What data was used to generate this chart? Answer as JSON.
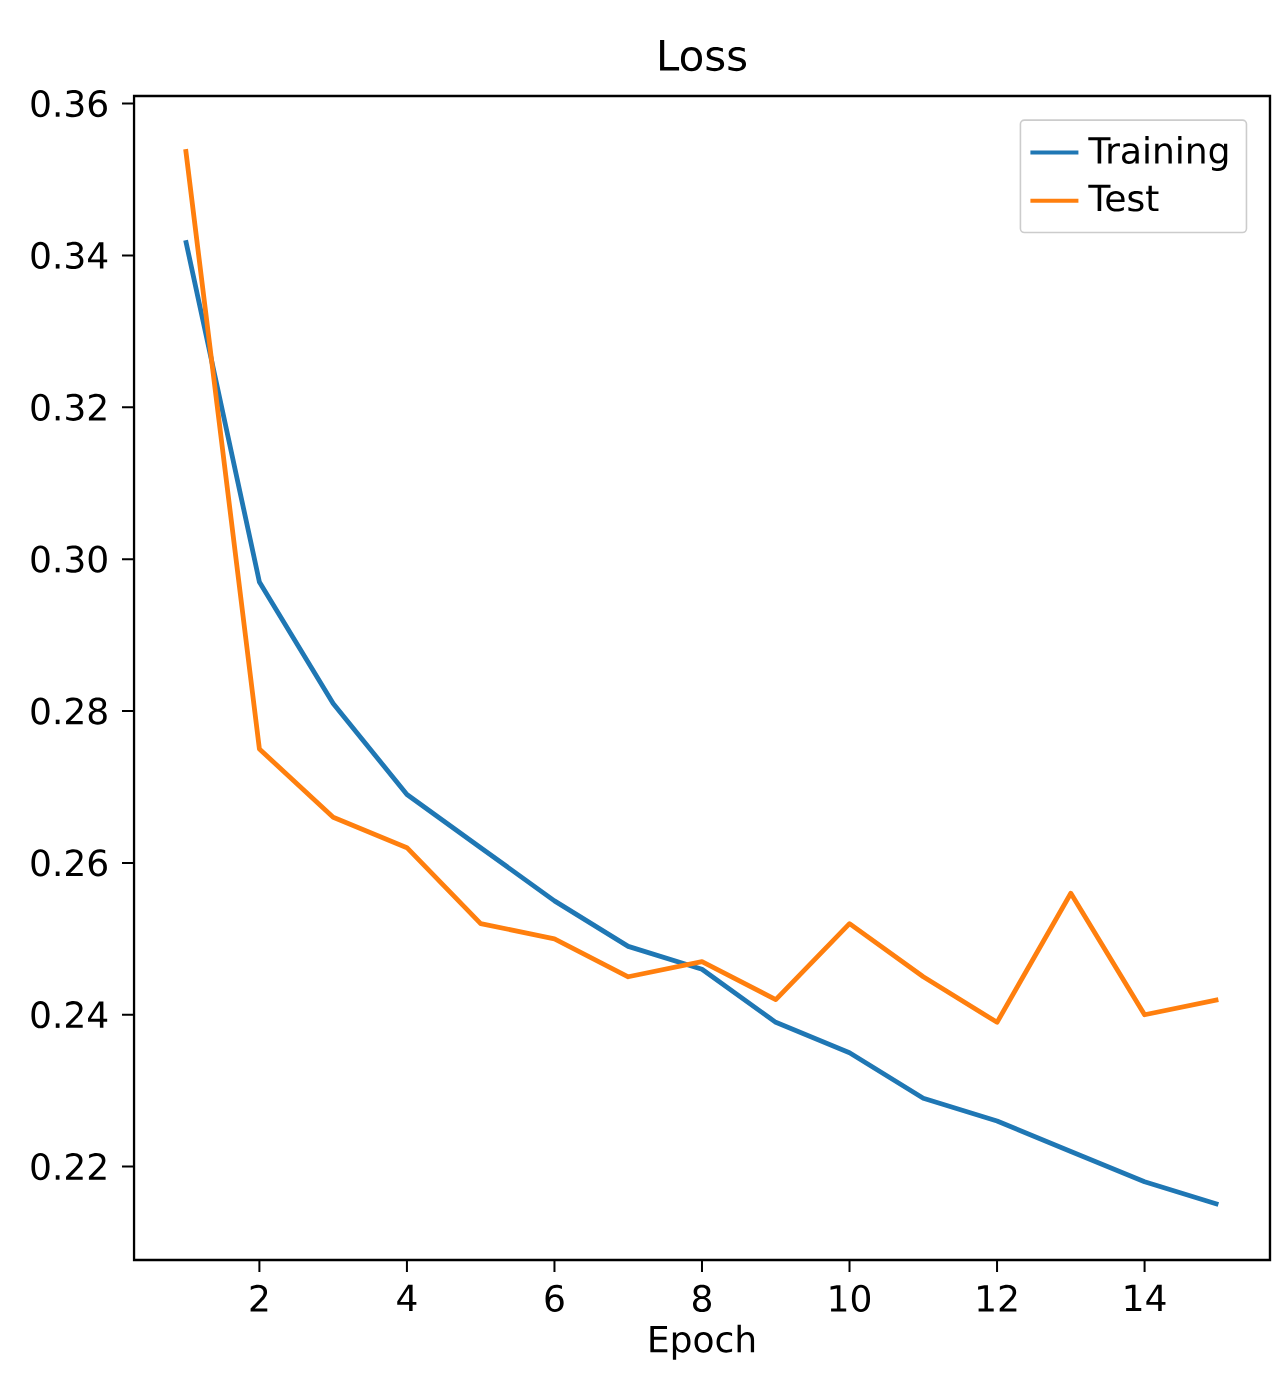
{
  "chart_data": {
    "type": "line",
    "title": "Loss",
    "xlabel": "Epoch",
    "x": [
      1,
      2,
      3,
      4,
      5,
      6,
      7,
      8,
      9,
      10,
      11,
      12,
      13,
      14,
      15
    ],
    "series": [
      {
        "name": "Training",
        "color": "#1f77b4",
        "values": [
          0.342,
          0.297,
          0.281,
          0.269,
          0.262,
          0.255,
          0.249,
          0.246,
          0.239,
          0.235,
          0.229,
          0.226,
          0.222,
          0.218,
          0.215
        ]
      },
      {
        "name": "Test",
        "color": "#ff7f0e",
        "values": [
          0.354,
          0.275,
          0.266,
          0.262,
          0.252,
          0.25,
          0.245,
          0.247,
          0.242,
          0.252,
          0.245,
          0.239,
          0.256,
          0.24,
          0.242
        ]
      }
    ],
    "xlim": [
      0.3,
      15.7
    ],
    "xticks": [
      2,
      4,
      6,
      8,
      10,
      12,
      14
    ],
    "ylim": [
      0.2077,
      0.361
    ],
    "yticks": [
      0.22,
      0.24,
      0.26,
      0.28,
      {
        "value": 0.3,
        "label": "0.30"
      },
      0.32,
      0.34,
      0.36
    ],
    "grid": false,
    "legend": "top right",
    "marker": "none",
    "line_style": "solid"
  }
}
